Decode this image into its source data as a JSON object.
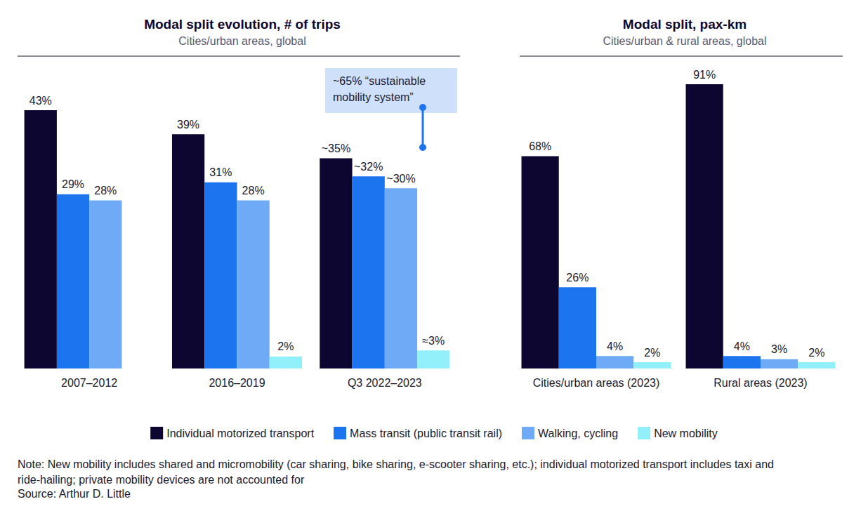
{
  "chart_data": [
    {
      "type": "bar",
      "title": "Modal split evolution, # of trips",
      "subtitle": "Cities/urban areas, global",
      "categories": [
        "2007–2012",
        "2016–2019",
        "Q3 2022–2023"
      ],
      "series": [
        {
          "name": "Individual motorized transport",
          "color": "#0d0630",
          "values": [
            43,
            39,
            35
          ],
          "value_labels": [
            "43%",
            "39%",
            "~35%"
          ]
        },
        {
          "name": "Mass transit (public transit rail)",
          "color": "#1c74ef",
          "values": [
            29,
            31,
            32
          ],
          "value_labels": [
            "29%",
            "31%",
            "~32%"
          ]
        },
        {
          "name": "Walking, cycling",
          "color": "#6eaaf5",
          "values": [
            28,
            28,
            30
          ],
          "value_labels": [
            "28%",
            "28%",
            "~30%"
          ]
        },
        {
          "name": "New mobility",
          "color": "#92f0fb",
          "values": [
            null,
            2,
            3
          ],
          "value_labels": [
            null,
            "2%",
            "≈3%"
          ]
        }
      ],
      "ylim": [
        0,
        52
      ],
      "grid": false,
      "data_labels": true,
      "tick_labels": "x",
      "legend": "bottom",
      "annotations": [
        {
          "text": "~65% “sustainable mobility system”"
        }
      ]
    },
    {
      "type": "bar",
      "title": "Modal split, pax-km",
      "subtitle": "Cities/urban & rural areas, global",
      "categories": [
        "Cities/urban areas (2023)",
        "Rural areas (2023)"
      ],
      "series": [
        {
          "name": "Individual motorized transport",
          "color": "#0d0630",
          "values": [
            68,
            91
          ],
          "value_labels": [
            "68%",
            "91%"
          ]
        },
        {
          "name": "Mass transit (public transit rail)",
          "color": "#1c74ef",
          "values": [
            26,
            4
          ],
          "value_labels": [
            "26%",
            "4%"
          ]
        },
        {
          "name": "Walking, cycling",
          "color": "#6eaaf5",
          "values": [
            4,
            3
          ],
          "value_labels": [
            "4%",
            "3%"
          ]
        },
        {
          "name": "New mobility",
          "color": "#92f0fb",
          "values": [
            2,
            2
          ],
          "value_labels": [
            "2%",
            "2%"
          ]
        }
      ],
      "ylim": [
        0,
        100
      ],
      "grid": false,
      "data_labels": true,
      "tick_labels": "x",
      "legend": "bottom"
    }
  ],
  "note": "Note: New mobility includes shared and micromobility (car sharing, bike sharing, e-scooter sharing, etc.); individual motorized transport includes taxi and ride-hailing; private mobility devices are not accounted for",
  "source": "Source: Arthur D. Little"
}
